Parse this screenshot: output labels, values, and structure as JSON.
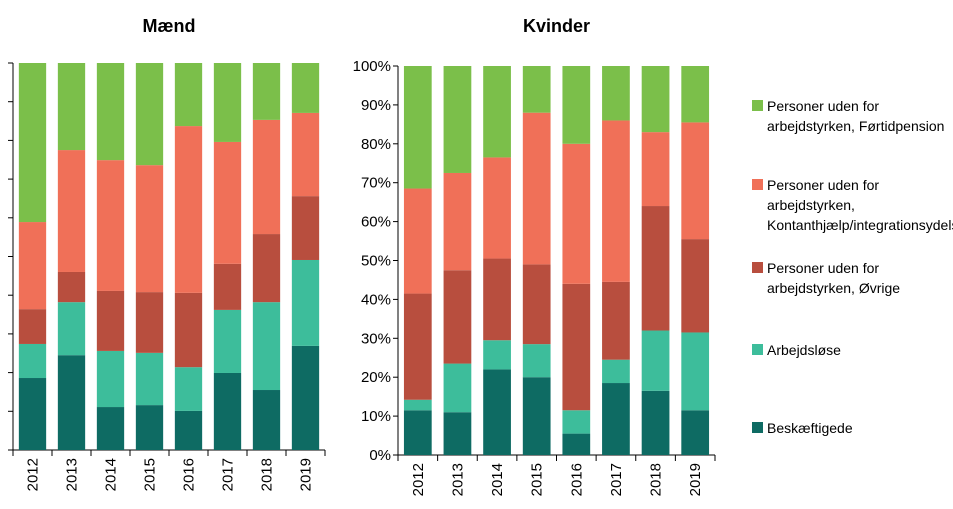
{
  "chart_data": [
    {
      "type": "stacked_bar",
      "title": "Mænd",
      "categories": [
        "2012",
        "2013",
        "2014",
        "2015",
        "2016",
        "2017",
        "2018",
        "2019"
      ],
      "ylim": [
        0,
        100
      ],
      "yticks": [
        0,
        10,
        20,
        30,
        40,
        50,
        60,
        70,
        80,
        90,
        100
      ],
      "series": [
        {
          "color": "#0e6b63",
          "values": [
            18.6,
            24.5,
            11.1,
            11.6,
            10.1,
            19.9,
            15.5,
            26.9
          ]
        },
        {
          "color": "#3dbd9b",
          "values": [
            8.8,
            13.7,
            14.5,
            13.5,
            11.3,
            16.3,
            22.7,
            22.2
          ]
        },
        {
          "color": "#b84e3e",
          "values": [
            9,
            7.8,
            15.5,
            15.7,
            19.2,
            11.9,
            17.6,
            16.5
          ]
        },
        {
          "color": "#f07058",
          "values": [
            22.5,
            31.5,
            33.8,
            32.8,
            43.1,
            31.5,
            29.5,
            21.5
          ]
        },
        {
          "color": "#7bbf4a",
          "values": [
            41.1,
            22.5,
            25.1,
            26.4,
            16.3,
            20.4,
            14.7,
            12.9
          ]
        }
      ]
    },
    {
      "type": "stacked_bar",
      "title": "Kvinder",
      "categories": [
        "2012",
        "2013",
        "2014",
        "2015",
        "2016",
        "2017",
        "2018",
        "2019"
      ],
      "ylim": [
        0,
        100
      ],
      "yticks": [
        {
          "value": 0,
          "label": "0%"
        },
        {
          "value": 10,
          "label": "10%"
        },
        {
          "value": 20,
          "label": "20%"
        },
        {
          "value": 30,
          "label": "30%"
        },
        {
          "value": 40,
          "label": "40%"
        },
        {
          "value": 50,
          "label": "50%"
        },
        {
          "value": 60,
          "label": "60%"
        },
        {
          "value": 70,
          "label": "70%"
        },
        {
          "value": 80,
          "label": "80%"
        },
        {
          "value": 90,
          "label": "90%"
        },
        {
          "value": 100,
          "label": "100%"
        }
      ],
      "series": [
        {
          "name": "Beskæftigede",
          "color": "#0e6b63",
          "values": [
            11.5,
            11,
            22,
            20,
            5.5,
            18.5,
            16.5,
            11.5
          ]
        },
        {
          "name": "Arbejdsløse",
          "color": "#3dbd9b",
          "values": [
            2.7,
            12.5,
            7.5,
            8.5,
            6,
            6,
            15.5,
            20
          ]
        },
        {
          "name": "Personer uden for arbejdstyrken, Øvrige",
          "color": "#b84e3e",
          "values": [
            27.3,
            24,
            21,
            20.5,
            32.5,
            20,
            32,
            24
          ]
        },
        {
          "name": "Personer uden for arbejdstyrken, Kontanthjælp/integrationsydelse",
          "color": "#f07058",
          "values": [
            27,
            25,
            26,
            39,
            36,
            41.5,
            19,
            30
          ]
        },
        {
          "name": "Personer uden for arbejdstyrken, Førtidpension",
          "color": "#7bbf4a",
          "values": [
            31.5,
            27.5,
            23.5,
            12,
            20,
            14,
            17,
            14.5
          ]
        }
      ]
    }
  ]
}
